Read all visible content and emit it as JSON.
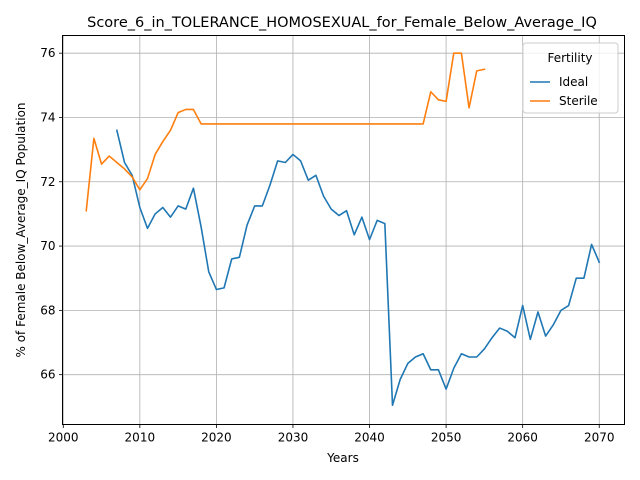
{
  "chart_data": {
    "type": "line",
    "title": "Score_6_in_TOLERANCE_HOMOSEXUAL_for_Female_Below_Average_IQ",
    "xlabel": "Years",
    "ylabel": "% of Female Below_Average_IQ Population",
    "xlim": [
      1999.9,
      2073.3
    ],
    "ylim": [
      64.45,
      76.55
    ],
    "xticks": [
      2000,
      2010,
      2020,
      2030,
      2040,
      2050,
      2060,
      2070
    ],
    "yticks": [
      66,
      68,
      70,
      72,
      74,
      76
    ],
    "grid": true,
    "legend": {
      "title": "Fertility",
      "placement": "upper right"
    },
    "colors": {
      "Ideal": "#1f77b4",
      "Sterile": "#ff7f0e"
    },
    "series": [
      {
        "name": "Ideal",
        "x": [
          2007,
          2008,
          2009,
          2010,
          2011,
          2012,
          2013,
          2014,
          2015,
          2016,
          2017,
          2018,
          2019,
          2020,
          2021,
          2022,
          2023,
          2024,
          2025,
          2026,
          2027,
          2028,
          2029,
          2030,
          2031,
          2032,
          2033,
          2034,
          2035,
          2036,
          2037,
          2038,
          2039,
          2040,
          2041,
          2042,
          2043,
          2044,
          2045,
          2046,
          2047,
          2048,
          2049,
          2050,
          2051,
          2052,
          2053,
          2054,
          2055,
          2056,
          2057,
          2058,
          2059,
          2060,
          2061,
          2062,
          2063,
          2064,
          2065,
          2066,
          2067,
          2068,
          2069,
          2070
        ],
        "y": [
          73.6,
          72.6,
          72.2,
          71.2,
          70.55,
          71.0,
          71.2,
          70.9,
          71.25,
          71.15,
          71.8,
          70.6,
          69.2,
          68.65,
          68.7,
          69.6,
          69.65,
          70.65,
          71.25,
          71.25,
          71.9,
          72.65,
          72.6,
          72.85,
          72.65,
          72.05,
          72.2,
          71.55,
          71.15,
          70.95,
          71.1,
          70.35,
          70.9,
          70.2,
          70.8,
          70.7,
          65.05,
          65.85,
          66.35,
          66.55,
          66.65,
          66.15,
          66.15,
          65.55,
          66.2,
          66.65,
          66.55,
          66.55,
          66.8,
          67.15,
          67.45,
          67.35,
          67.15,
          68.15,
          67.1,
          67.95,
          67.2,
          67.55,
          68.0,
          68.15,
          69.0,
          69.0,
          70.05,
          69.5
        ]
      },
      {
        "name": "Sterile",
        "x": [
          2003,
          2004,
          2005,
          2006,
          2007,
          2008,
          2009,
          2010,
          2011,
          2012,
          2013,
          2014,
          2015,
          2016,
          2017,
          2018,
          2019,
          2020,
          2021,
          2022,
          2023,
          2024,
          2025,
          2026,
          2027,
          2028,
          2029,
          2030,
          2031,
          2032,
          2033,
          2034,
          2035,
          2036,
          2037,
          2038,
          2039,
          2040,
          2041,
          2042,
          2043,
          2044,
          2045,
          2046,
          2047,
          2048,
          2049,
          2050,
          2051,
          2052,
          2053,
          2054,
          2055
        ],
        "y": [
          71.1,
          73.35,
          72.55,
          72.8,
          72.6,
          72.4,
          72.15,
          71.75,
          72.1,
          72.85,
          73.25,
          73.6,
          74.15,
          74.25,
          74.25,
          73.8,
          73.8,
          73.8,
          73.8,
          73.8,
          73.8,
          73.8,
          73.8,
          73.8,
          73.8,
          73.8,
          73.8,
          73.8,
          73.8,
          73.8,
          73.8,
          73.8,
          73.8,
          73.8,
          73.8,
          73.8,
          73.8,
          73.8,
          73.8,
          73.8,
          73.8,
          73.8,
          73.8,
          73.8,
          73.8,
          74.8,
          74.55,
          74.5,
          76.0,
          76.0,
          74.3,
          75.45,
          75.5
        ]
      }
    ]
  }
}
